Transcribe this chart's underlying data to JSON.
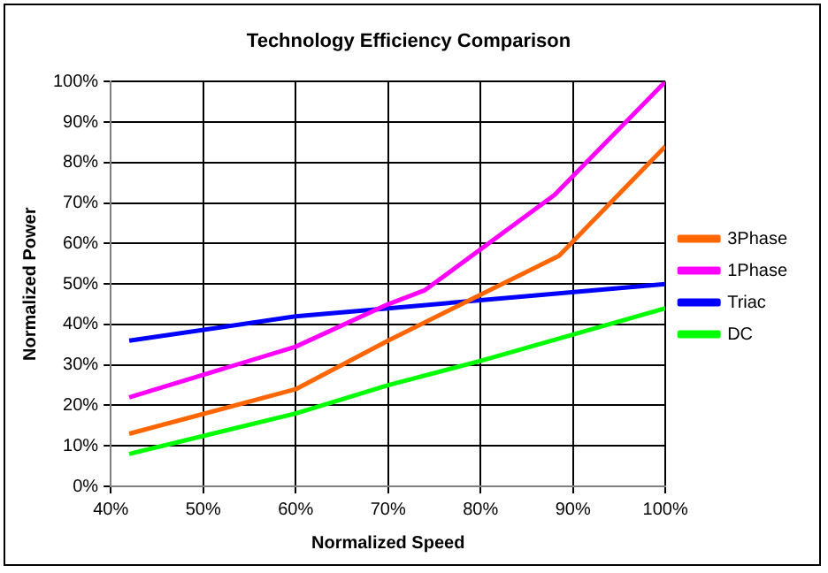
{
  "chart_data": {
    "type": "line",
    "title": "Technology Efficiency Comparison",
    "xlabel": "Normalized Speed",
    "ylabel": "Normalized Power",
    "xlim": [
      40,
      100
    ],
    "xticks": [
      {
        "value": 40,
        "label": "40%"
      },
      {
        "value": 50,
        "label": "50%"
      },
      {
        "value": 60,
        "label": "60%"
      },
      {
        "value": 70,
        "label": "70%"
      },
      {
        "value": 80,
        "label": "80%"
      },
      {
        "value": 90,
        "label": "90%"
      },
      {
        "value": 100,
        "label": "100%"
      }
    ],
    "ylim": [
      0,
      100
    ],
    "yticks": [
      {
        "value": 0,
        "label": "0%"
      },
      {
        "value": 10,
        "label": "10%"
      },
      {
        "value": 20,
        "label": "20%"
      },
      {
        "value": 30,
        "label": "30%"
      },
      {
        "value": 40,
        "label": "40%"
      },
      {
        "value": 50,
        "label": "50%"
      },
      {
        "value": 60,
        "label": "60%"
      },
      {
        "value": 70,
        "label": "70%"
      },
      {
        "value": 80,
        "label": "80%"
      },
      {
        "value": 90,
        "label": "90%"
      },
      {
        "value": 100,
        "label": "100%"
      }
    ],
    "grid": true,
    "legend": "right",
    "marker": "none",
    "line_style": "solid",
    "series": [
      {
        "name": "3Phase",
        "color": "#ff6600",
        "x": [
          42,
          60,
          70,
          88.5,
          100
        ],
        "values": [
          13,
          24,
          36,
          57,
          84
        ]
      },
      {
        "name": "1Phase",
        "color": "#ff00ff",
        "x": [
          42,
          60,
          70,
          74,
          88,
          100
        ],
        "values": [
          22,
          34.5,
          45,
          48.5,
          72,
          100
        ]
      },
      {
        "name": "Triac",
        "color": "#0000ff",
        "x": [
          42,
          60,
          70,
          80,
          100
        ],
        "values": [
          36,
          42,
          44,
          46,
          50
        ]
      },
      {
        "name": "DC",
        "color": "#00ff00",
        "x": [
          42,
          60,
          70,
          80,
          100
        ],
        "values": [
          8,
          18,
          25,
          31,
          44
        ]
      }
    ]
  }
}
